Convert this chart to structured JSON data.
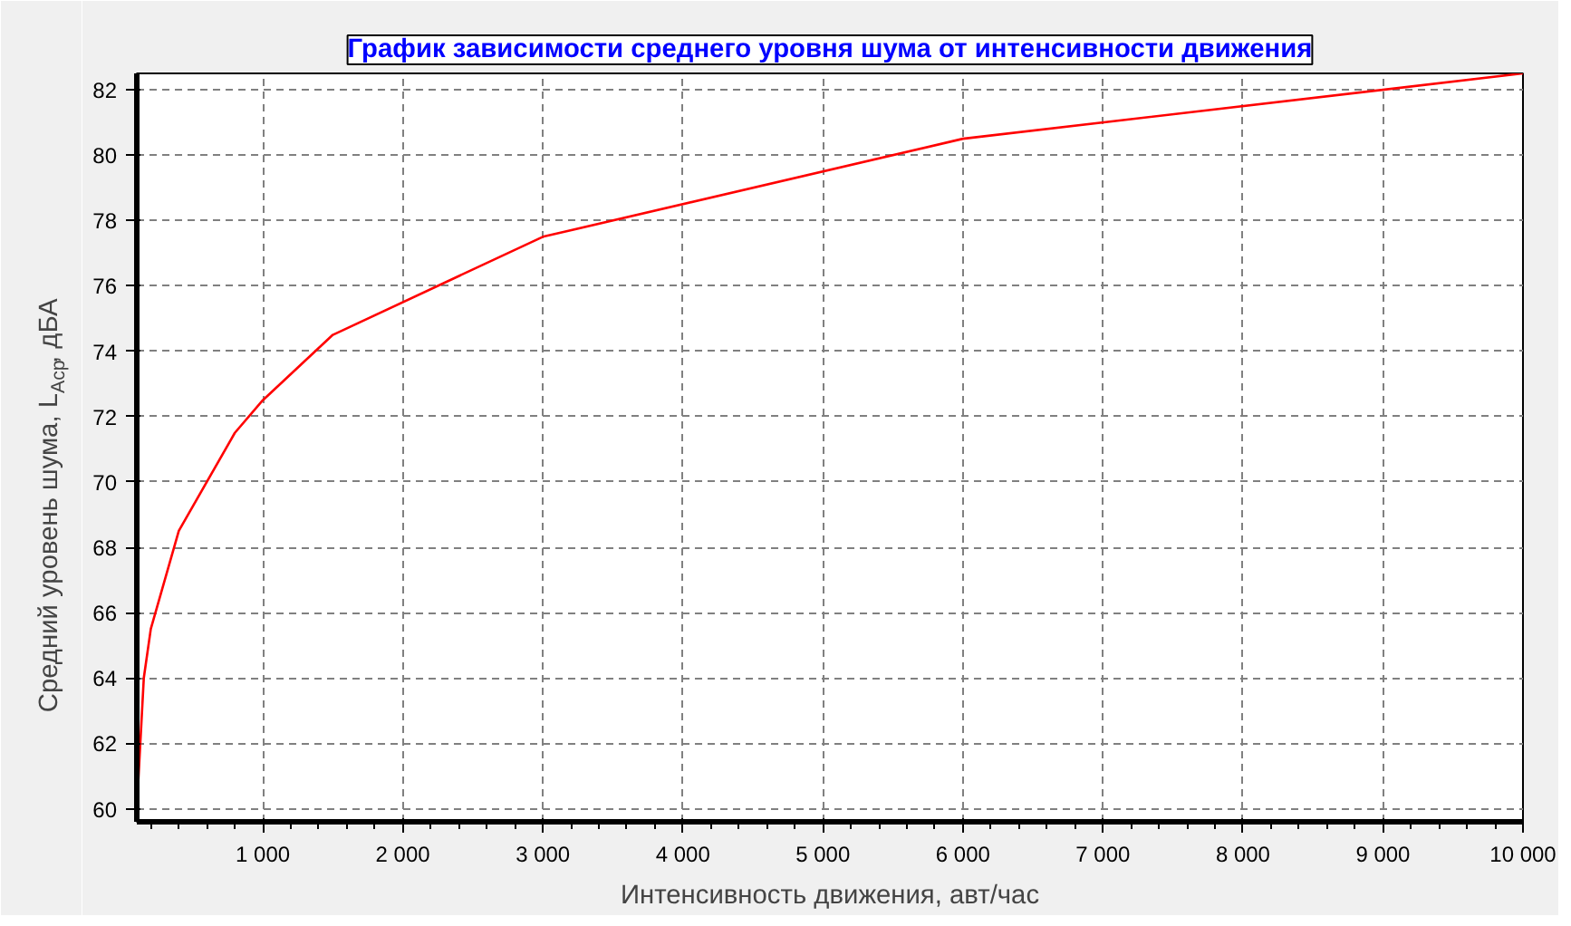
{
  "chart_data": {
    "type": "line",
    "title": "График зависимости среднего уровня шума от интенсивности движения",
    "xlabel": "Интенсивность движения, авт/час",
    "ylabel": "Средний уровень шума, L$_{Аср}$, дБА",
    "x": [
      100,
      150,
      200,
      400,
      800,
      1000,
      1500,
      3000,
      6000,
      10000
    ],
    "series": [
      {
        "color": "#ff0000",
        "values": [
          60,
          64,
          65.5,
          68.5,
          71.5,
          72.5,
          74.5,
          77.5,
          80.5,
          82.5
        ]
      }
    ],
    "xlim": [
      100,
      10000
    ],
    "ylim": [
      59.6,
      82.5
    ],
    "xticks": [
      {
        "value": 1000,
        "label": "1 000"
      },
      {
        "value": 2000,
        "label": "2 000"
      },
      {
        "value": 3000,
        "label": "3 000"
      },
      {
        "value": 4000,
        "label": "4 000"
      },
      {
        "value": 5000,
        "label": "5 000"
      },
      {
        "value": 6000,
        "label": "6 000"
      },
      {
        "value": 7000,
        "label": "7 000"
      },
      {
        "value": 8000,
        "label": "8 000"
      },
      {
        "value": 9000,
        "label": "9 000"
      },
      {
        "value": 10000,
        "label": "10 000"
      }
    ],
    "yticks": [
      60,
      62,
      64,
      66,
      68,
      70,
      72,
      74,
      76,
      78,
      80,
      82
    ],
    "grid": true,
    "line_style": "solid"
  }
}
